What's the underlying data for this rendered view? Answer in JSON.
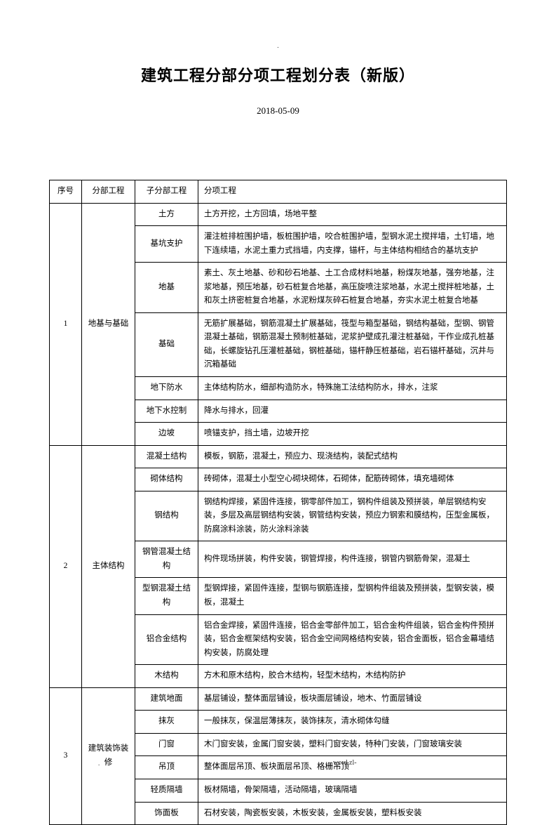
{
  "topMark": ".",
  "title": "建筑工程分部分项工程划分表（新版）",
  "date": "2018-05-09",
  "headers": {
    "seq": "序号",
    "div": "分部工程",
    "sub": "子分部工程",
    "item": "分项工程"
  },
  "sections": [
    {
      "seq": "1",
      "div": "地基与基础",
      "rows": [
        {
          "sub": "土方",
          "item": "土方开挖，土方回填，场地平整"
        },
        {
          "sub": "基坑支护",
          "item": "灌注桩排桩围护墙，板桩围护墙，咬合桩围护墙，型钢水泥土搅拌墙，土钉墙，地下连续墙，水泥土重力式挡墙，内支撑，锚杆，与主体结构相结合的基坑支护"
        },
        {
          "sub": "地基",
          "item": "素土、灰土地基、砂和砂石地基、土工合成材料地基，粉煤灰地基，强夯地基，注浆地基，预压地基，砂石桩复合地基，高压旋喷注浆地基，水泥土搅拌桩地基，土和灰土挤密桩复合地基，水泥粉煤灰碎石桩复合地基，夯实水泥土桩复合地基"
        },
        {
          "sub": "基础",
          "item": "无筋扩展基础，钢筋混凝土扩展基础，筏型与箱型基础，钢结构基础，型钢、钢管混凝土基础，钢筋混凝土预制桩基础，泥浆护壁成孔灌注桩基础，干作业成孔桩基础，长螺旋钻孔压灌桩基础，钢桩基础，锚杆静压桩基础，岩石锚杆基础，沉井与沉箱基础"
        },
        {
          "sub": "地下防水",
          "item": "主体结构防水，细部构造防水，特殊施工法结构防水，排水，注浆"
        },
        {
          "sub": "地下水控制",
          "item": "降水与排水，回灌"
        },
        {
          "sub": "边坡",
          "item": "喷锚支护，挡土墙，边坡开挖"
        }
      ]
    },
    {
      "seq": "2",
      "div": "主体结构",
      "rows": [
        {
          "sub": "混凝土结构",
          "item": "模板，钢筋，混凝土，预应力、现浇结构，装配式结构"
        },
        {
          "sub": "砌体结构",
          "item": "砖砌体，混凝土小型空心砌块砌体，石砌体，配筋砖砌体，填充墙砌体"
        },
        {
          "sub": "钢结构",
          "item": "钢结构焊接，紧固件连接，钢零部件加工，钢构件组装及预拼装，单层钢结构安装，多层及高层钢结构安装，钢管结构安装，预应力钢索和膜结构，压型金属板，防腐涂料涂装，防火涂料涂装"
        },
        {
          "sub": "钢管混凝土结构",
          "item": "构件现场拼装，构件安装，钢管焊接，构件连接，钢管内钢筋骨架，混凝土"
        },
        {
          "sub": "型钢混凝土结构",
          "item": "型钢焊接，紧固件连接，型钢与钢筋连接，型钢构件组装及预拼装，型钢安装，模板，混凝土"
        },
        {
          "sub": "铝合金结构",
          "item": "铝合金焊接，紧固件连接，铝合金零部件加工，铝合金构件组装，铝合金构件预拼装，铝合金框架结构安装，铝合金空间网格结构安装，铝合金面板，铝合金幕墙结构安装，防腐处理"
        },
        {
          "sub": "木结构",
          "item": "方木和原木结构，胶合木结构，轻型木结构，木结构防护"
        }
      ]
    },
    {
      "seq": "3",
      "div": "建筑装饰装修",
      "rows": [
        {
          "sub": "建筑地面",
          "item": "基层铺设，整体面层铺设，板块面层铺设，地木、竹面层铺设"
        },
        {
          "sub": "抹灰",
          "item": "一般抹灰，保温层薄抹灰，装饰抹灰，清水砌体勾缝"
        },
        {
          "sub": "门窗",
          "item": "木门窗安装，金属门窗安装，塑料门窗安装，特种门安装，门窗玻璃安装"
        },
        {
          "sub": "吊顶",
          "item": "整体面层吊顶、板块面层吊顶、格栅吊顶"
        },
        {
          "sub": "轻质隔墙",
          "item": "板材隔墙，骨架隔墙，活动隔墙，玻璃隔墙"
        },
        {
          "sub": "饰面板",
          "item": "石材安装，陶瓷板安装，木板安装，金属板安装，塑料板安装"
        }
      ]
    }
  ],
  "footerLeft": ".",
  "footerRight": ". word.zl-"
}
